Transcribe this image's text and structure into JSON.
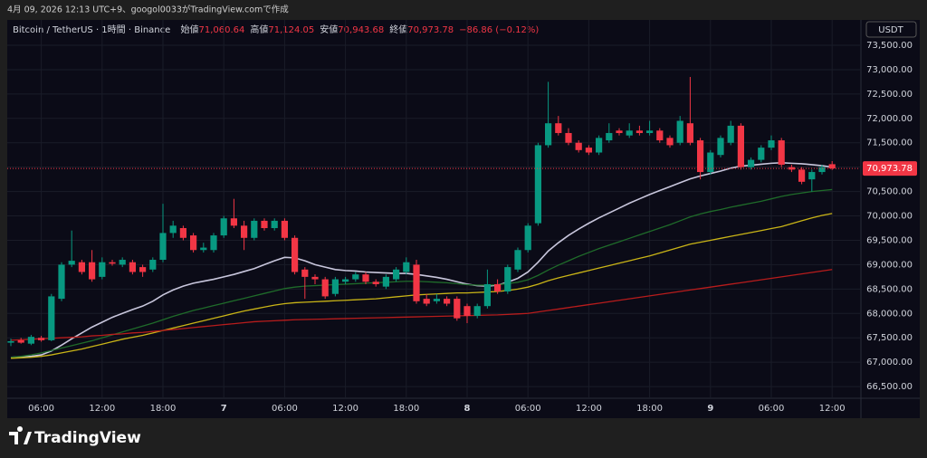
{
  "attribution": "4月 09, 2026 12:13 UTC+9、googol0033がTradingView.comで作成",
  "logo": "TradingView",
  "chart_data": {
    "type": "candlestick",
    "symbol": "Bitcoin / TetherUS · 1時間 · Binance",
    "ohlc_legend": [
      {
        "label": "始値",
        "value": "71,060.64"
      },
      {
        "label": "高値",
        "value": "71,124.05"
      },
      {
        "label": "安値",
        "value": "70,943.68"
      },
      {
        "label": "終値",
        "value": "70,973.78"
      }
    ],
    "change": "−86.86 (−0.12%)",
    "currency": "USDT",
    "up_color": "#089981",
    "down_color": "#f23645",
    "categories": [
      null,
      null,
      null,
      "06:00",
      null,
      null,
      null,
      null,
      null,
      "12:00",
      null,
      null,
      null,
      null,
      null,
      "18:00",
      null,
      null,
      null,
      null,
      null,
      "7",
      null,
      null,
      null,
      null,
      null,
      "06:00",
      null,
      null,
      null,
      null,
      null,
      "12:00",
      null,
      null,
      null,
      null,
      null,
      "18:00",
      null,
      null,
      null,
      null,
      null,
      "8",
      null,
      null,
      null,
      null,
      null,
      "06:00",
      null,
      null,
      null,
      null,
      null,
      "12:00",
      null,
      null,
      null,
      null,
      null,
      "18:00",
      null,
      null,
      null,
      null,
      null,
      "9",
      null,
      null,
      null,
      null,
      null,
      "06:00",
      null,
      null,
      null,
      null,
      null,
      "12:00"
    ],
    "open": [
      67400,
      67450,
      67380,
      67500,
      67450,
      68300,
      69000,
      69050,
      69050,
      68750,
      69050,
      69000,
      69050,
      68950,
      68900,
      69100,
      69650,
      69750,
      69600,
      69300,
      69300,
      69600,
      69950,
      69800,
      69550,
      69900,
      69750,
      69900,
      69550,
      68900,
      68750,
      68700,
      68400,
      68650,
      68700,
      68800,
      68650,
      68550,
      68700,
      68850,
      69000,
      68300,
      68250,
      68300,
      68300,
      68150,
      67950,
      68150,
      68600,
      68450,
      68900,
      69300,
      69850,
      71450,
      71900,
      71700,
      71500,
      71400,
      71300,
      71550,
      71750,
      71650,
      71750,
      71700,
      71750,
      71600,
      71500,
      71900,
      71550,
      70900,
      71250,
      71500,
      71850,
      71000,
      71150,
      71400,
      71550,
      71000,
      70950,
      70750,
      70900,
      71060.64
    ],
    "high": [
      67480,
      67500,
      67560,
      67540,
      68400,
      69050,
      69700,
      69100,
      69300,
      69150,
      69100,
      69150,
      69100,
      69000,
      69150,
      70250,
      69900,
      69800,
      69650,
      69450,
      69650,
      70000,
      70350,
      69900,
      69950,
      69950,
      69950,
      69950,
      69600,
      68950,
      68800,
      68750,
      68750,
      68750,
      68850,
      68850,
      68700,
      68800,
      68950,
      69150,
      69100,
      68400,
      68400,
      68350,
      68350,
      68200,
      68200,
      68900,
      68700,
      69000,
      69350,
      69850,
      71500,
      72750,
      72050,
      71800,
      71550,
      71450,
      71650,
      71900,
      71800,
      71900,
      71850,
      71950,
      71800,
      71650,
      72050,
      72850,
      71600,
      71350,
      71650,
      71950,
      71900,
      71200,
      71450,
      71650,
      71600,
      71050,
      71000,
      70950,
      71050,
      71124.05
    ],
    "low": [
      67330,
      67380,
      67350,
      67420,
      67430,
      68250,
      68950,
      68800,
      68650,
      68700,
      68980,
      68950,
      68800,
      68750,
      68850,
      69050,
      69550,
      69500,
      69250,
      69250,
      69250,
      69550,
      69750,
      69300,
      69500,
      69700,
      69700,
      69500,
      68800,
      68300,
      68600,
      68300,
      68350,
      68600,
      68650,
      68600,
      68550,
      68500,
      68650,
      68800,
      68200,
      68150,
      68200,
      68150,
      67850,
      67800,
      67900,
      68100,
      68400,
      68400,
      68850,
      69250,
      69800,
      71400,
      71650,
      71450,
      71300,
      71250,
      71250,
      71500,
      71650,
      71600,
      71650,
      71650,
      71500,
      71400,
      71450,
      71450,
      70750,
      70850,
      71200,
      71450,
      70950,
      70950,
      71100,
      71350,
      71000,
      70900,
      70650,
      70500,
      70850,
      70943.68
    ],
    "close": [
      67430,
      67400,
      67520,
      67450,
      68350,
      69000,
      69080,
      68850,
      68700,
      69050,
      69020,
      69100,
      68850,
      68850,
      69100,
      69650,
      69800,
      69550,
      69300,
      69350,
      69600,
      69950,
      69800,
      69550,
      69900,
      69750,
      69900,
      69550,
      68850,
      68750,
      68700,
      68350,
      68700,
      68700,
      68800,
      68650,
      68600,
      68750,
      68900,
      69050,
      68250,
      68200,
      68300,
      68200,
      67900,
      67950,
      68150,
      68600,
      68450,
      68950,
      69300,
      69800,
      71450,
      71900,
      71700,
      71500,
      71350,
      71300,
      71600,
      71700,
      71700,
      71750,
      71700,
      71750,
      71550,
      71450,
      71950,
      71500,
      70900,
      71300,
      71600,
      71850,
      71000,
      71150,
      71400,
      71550,
      71050,
      70950,
      70700,
      70900,
      71000,
      70973.78
    ],
    "series": [
      {
        "color": "#c8c6dc",
        "values": [
          67100,
          67110,
          67120,
          67150,
          67230,
          67350,
          67480,
          67600,
          67720,
          67820,
          67920,
          68000,
          68080,
          68150,
          68250,
          68380,
          68480,
          68560,
          68620,
          68660,
          68700,
          68750,
          68800,
          68860,
          68920,
          69000,
          69080,
          69150,
          69140,
          69080,
          69000,
          68950,
          68900,
          68880,
          68870,
          68850,
          68840,
          68830,
          68820,
          68820,
          68800,
          68770,
          68740,
          68700,
          68650,
          68600,
          68570,
          68560,
          68580,
          68640,
          68720,
          68850,
          69050,
          69280,
          69450,
          69600,
          69730,
          69850,
          69960,
          70060,
          70160,
          70260,
          70350,
          70440,
          70520,
          70600,
          70680,
          70760,
          70820,
          70870,
          70920,
          70980,
          71020,
          71040,
          71060,
          71080,
          71090,
          71080,
          71070,
          71050,
          71030,
          71000
        ]
      },
      {
        "color": "#1f6b2a",
        "values": [
          67100,
          67120,
          67150,
          67190,
          67240,
          67290,
          67340,
          67390,
          67440,
          67500,
          67560,
          67620,
          67680,
          67740,
          67800,
          67870,
          67940,
          68000,
          68060,
          68110,
          68160,
          68210,
          68260,
          68310,
          68360,
          68410,
          68460,
          68510,
          68540,
          68560,
          68570,
          68580,
          68590,
          68600,
          68610,
          68620,
          68630,
          68640,
          68650,
          68660,
          68660,
          68650,
          68640,
          68630,
          68610,
          68590,
          68580,
          68580,
          68590,
          68610,
          68640,
          68690,
          68780,
          68890,
          68990,
          69080,
          69170,
          69250,
          69330,
          69400,
          69470,
          69540,
          69610,
          69680,
          69750,
          69820,
          69900,
          69980,
          70040,
          70090,
          70130,
          70180,
          70220,
          70260,
          70300,
          70350,
          70400,
          70440,
          70470,
          70500,
          70520,
          70540
        ]
      },
      {
        "color": "#c9b417",
        "values": [
          67080,
          67090,
          67100,
          67120,
          67150,
          67190,
          67230,
          67270,
          67320,
          67370,
          67420,
          67470,
          67510,
          67550,
          67600,
          67650,
          67700,
          67750,
          67800,
          67850,
          67900,
          67950,
          68000,
          68050,
          68090,
          68130,
          68170,
          68200,
          68220,
          68230,
          68240,
          68250,
          68260,
          68270,
          68280,
          68290,
          68300,
          68320,
          68340,
          68360,
          68380,
          68390,
          68400,
          68410,
          68420,
          68420,
          68430,
          68440,
          68450,
          68470,
          68500,
          68540,
          68600,
          68670,
          68730,
          68780,
          68830,
          68880,
          68930,
          68980,
          69030,
          69080,
          69130,
          69180,
          69240,
          69300,
          69360,
          69420,
          69460,
          69500,
          69540,
          69580,
          69620,
          69660,
          69700,
          69740,
          69780,
          69840,
          69900,
          69960,
          70010,
          70050
        ]
      },
      {
        "color": "#b71c1c",
        "values": [
          67450,
          67460,
          67470,
          67480,
          67490,
          67500,
          67510,
          67520,
          67540,
          67550,
          67570,
          67580,
          67600,
          67610,
          67630,
          67650,
          67670,
          67690,
          67710,
          67730,
          67750,
          67770,
          67790,
          67810,
          67830,
          67840,
          67850,
          67860,
          67870,
          67875,
          67880,
          67885,
          67890,
          67895,
          67900,
          67905,
          67910,
          67915,
          67920,
          67925,
          67930,
          67935,
          67940,
          67945,
          67950,
          67955,
          67960,
          67965,
          67970,
          67980,
          67990,
          68000,
          68030,
          68060,
          68090,
          68120,
          68150,
          68180,
          68210,
          68240,
          68270,
          68300,
          68330,
          68360,
          68390,
          68420,
          68450,
          68480,
          68510,
          68540,
          68570,
          68600,
          68630,
          68660,
          68690,
          68720,
          68750,
          68780,
          68810,
          68840,
          68870,
          68900
        ]
      }
    ],
    "last_price": {
      "value": 70973.78,
      "label": "70,973.78"
    },
    "ylim": [
      66260,
      74020
    ],
    "yticks": [
      {
        "value": 66500,
        "label": "66,500.00"
      },
      {
        "value": 67000,
        "label": "67,000.00"
      },
      {
        "value": 67500,
        "label": "67,500.00"
      },
      {
        "value": 68000,
        "label": "68,000.00"
      },
      {
        "value": 68500,
        "label": "68,500.00"
      },
      {
        "value": 69000,
        "label": "69,000.00"
      },
      {
        "value": 69500,
        "label": "69,500.00"
      },
      {
        "value": 70000,
        "label": "70,000.00"
      },
      {
        "value": 70500,
        "label": "70,500.00"
      },
      {
        "value": 71000,
        "label": "71,000.00"
      },
      {
        "value": 71500,
        "label": "71,500.00"
      },
      {
        "value": 72000,
        "label": "72,000.00"
      },
      {
        "value": 72500,
        "label": "72,500.00"
      },
      {
        "value": 73000,
        "label": "73,000.00"
      },
      {
        "value": 73500,
        "label": "73,500.00"
      }
    ],
    "grid": true
  }
}
